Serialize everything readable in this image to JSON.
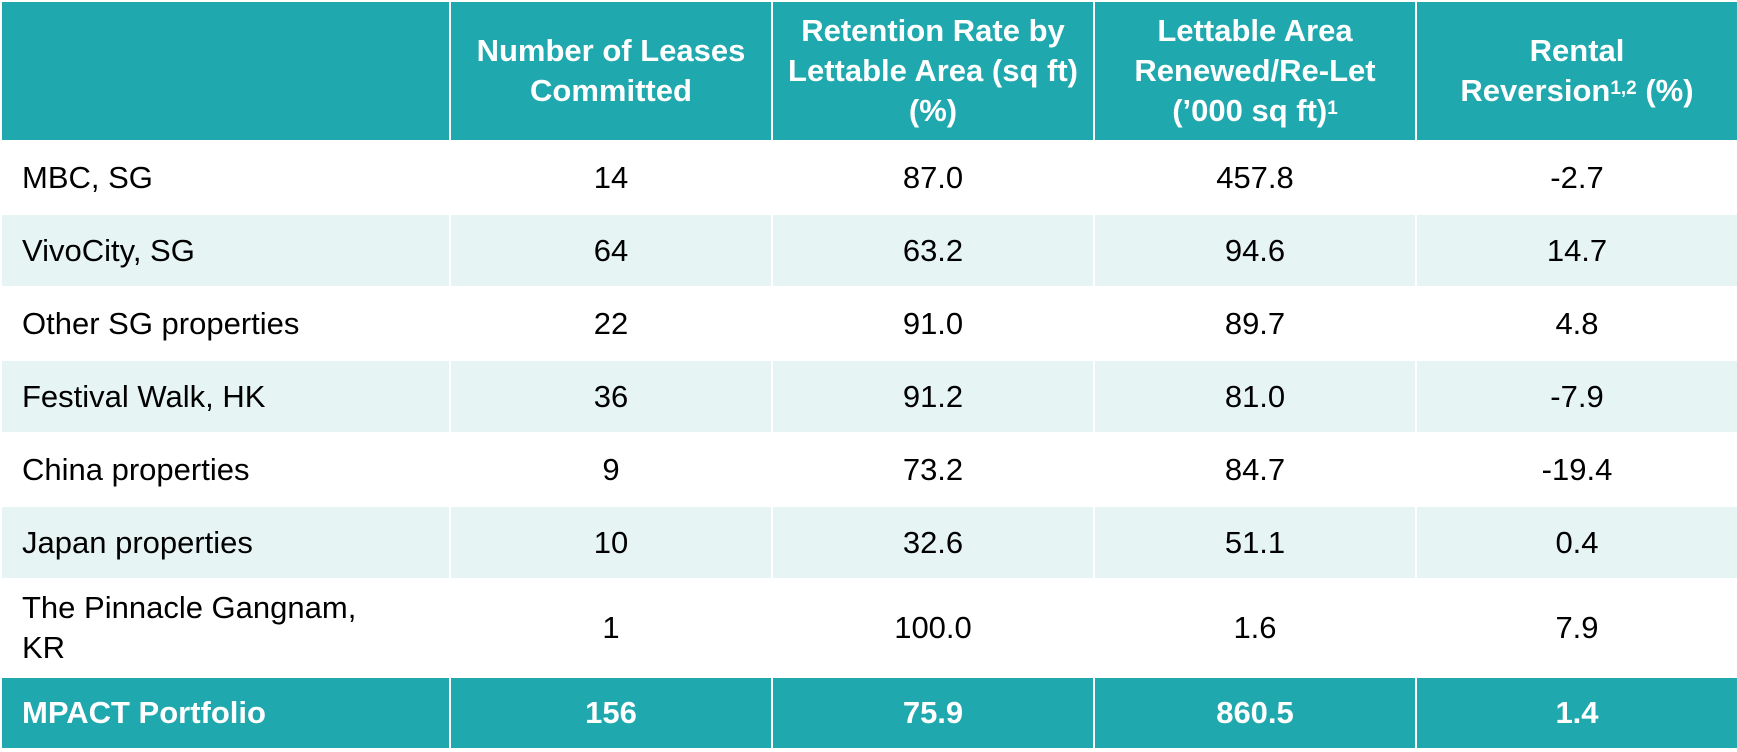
{
  "table": {
    "headers": {
      "col0": "",
      "col1": "Number of Leases Committed",
      "col2": "Retention Rate by Lettable Area (sq ft) (%)",
      "col3_main": "Lettable Area Renewed/Re-Let (’000 sq ft)",
      "col3_sup": "1",
      "col4_line1": "Rental",
      "col4_line2a": "Reversion",
      "col4_sup": "1,2",
      "col4_line2b": " (%)"
    },
    "rows": [
      {
        "name": "MBC, SG",
        "leases": "14",
        "retention": "87.0",
        "area": "457.8",
        "reversion": "-2.7"
      },
      {
        "name": "VivoCity, SG",
        "leases": "64",
        "retention": "63.2",
        "area": "94.6",
        "reversion": "14.7"
      },
      {
        "name": "Other SG properties",
        "leases": "22",
        "retention": "91.0",
        "area": "89.7",
        "reversion": "4.8"
      },
      {
        "name": "Festival Walk, HK",
        "leases": "36",
        "retention": "91.2",
        "area": "81.0",
        "reversion": "-7.9"
      },
      {
        "name": "China properties",
        "leases": "9",
        "retention": "73.2",
        "area": "84.7",
        "reversion": "-19.4"
      },
      {
        "name": "Japan properties",
        "leases": "10",
        "retention": "32.6",
        "area": "51.1",
        "reversion": "0.4"
      },
      {
        "name": "The Pinnacle Gangnam, KR",
        "leases": "1",
        "retention": "100.0",
        "area": "1.6",
        "reversion": "7.9"
      }
    ],
    "total": {
      "name": "MPACT Portfolio",
      "leases": "156",
      "retention": "75.9",
      "area": "860.5",
      "reversion": "1.4"
    }
  },
  "colors": {
    "header_bg": "#1fa8ae",
    "band_bg": "#e6f4f3"
  }
}
